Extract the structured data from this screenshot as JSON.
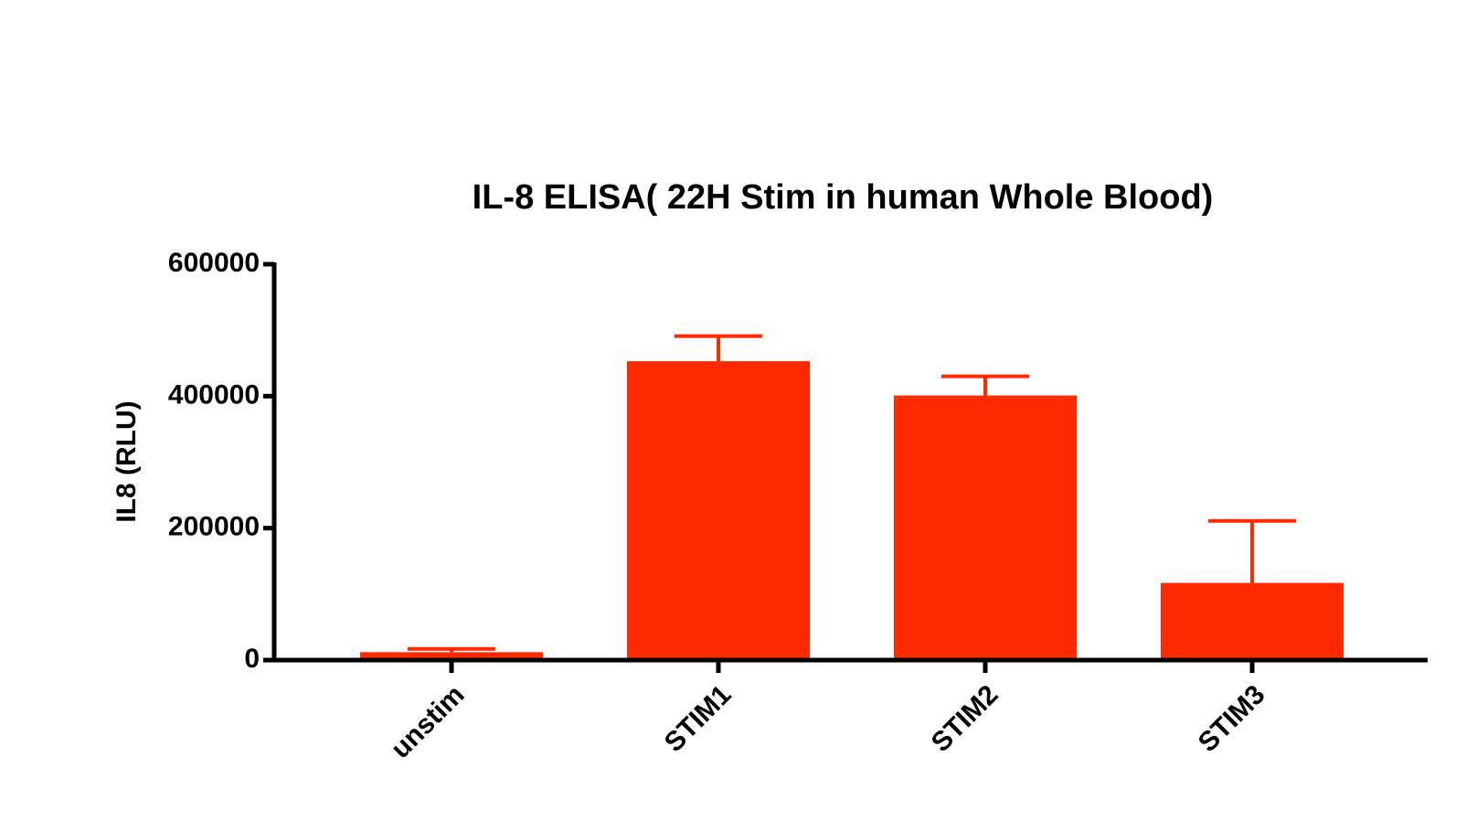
{
  "chart_data": {
    "type": "bar",
    "title": "IL-8 ELISA( 22H Stim in human Whole Blood)",
    "y_label": "IL8 (RLU)",
    "categories": [
      "unstim",
      "STIM1",
      "STIM2",
      "STIM3"
    ],
    "values": [
      12000,
      453000,
      401000,
      117000
    ],
    "errors": [
      5000,
      38000,
      29000,
      94000
    ],
    "color": "#ff2a00",
    "ylim": [
      0,
      600000
    ],
    "yticks": [
      0,
      200000,
      400000,
      600000
    ],
    "grid": false
  }
}
